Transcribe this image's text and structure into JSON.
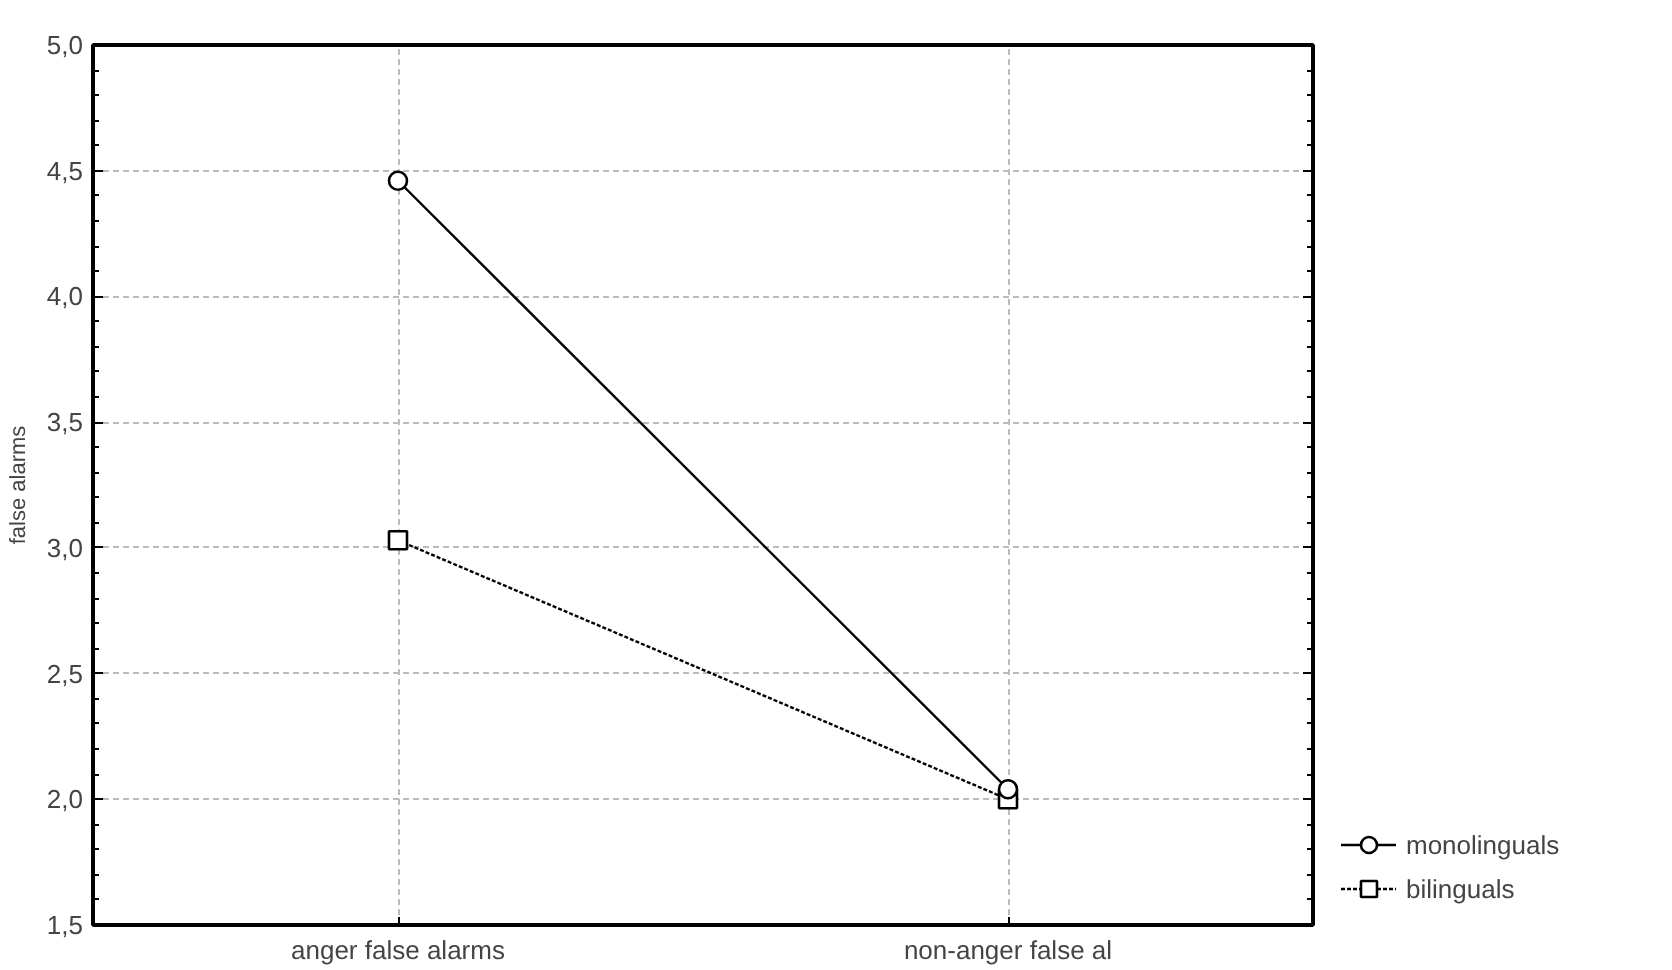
{
  "chart_data": {
    "type": "line",
    "ylabel": "false alarms",
    "categories": [
      "anger false alarms",
      "non-anger false al"
    ],
    "series": [
      {
        "name": "monolinguals",
        "color": "#000000",
        "values": [
          4.46,
          2.04
        ],
        "marker": "circle",
        "line_style": "solid"
      },
      {
        "name": "bilinguals",
        "color": "#000000",
        "values": [
          3.03,
          2.0
        ],
        "marker": "square",
        "line_style": "dotted"
      }
    ],
    "ylim": [
      1.5,
      5.0
    ],
    "yticks": [
      {
        "value": 1.5,
        "label": "1,5"
      },
      {
        "value": 2.0,
        "label": "2,0"
      },
      {
        "value": 2.5,
        "label": "2,5"
      },
      {
        "value": 3.0,
        "label": "3,0"
      },
      {
        "value": 3.5,
        "label": "3,5"
      },
      {
        "value": 4.0,
        "label": "4,0"
      },
      {
        "value": 4.5,
        "label": "4,5"
      },
      {
        "value": 5.0,
        "label": "5,0"
      }
    ],
    "grid": true,
    "legend": "bottom right"
  }
}
